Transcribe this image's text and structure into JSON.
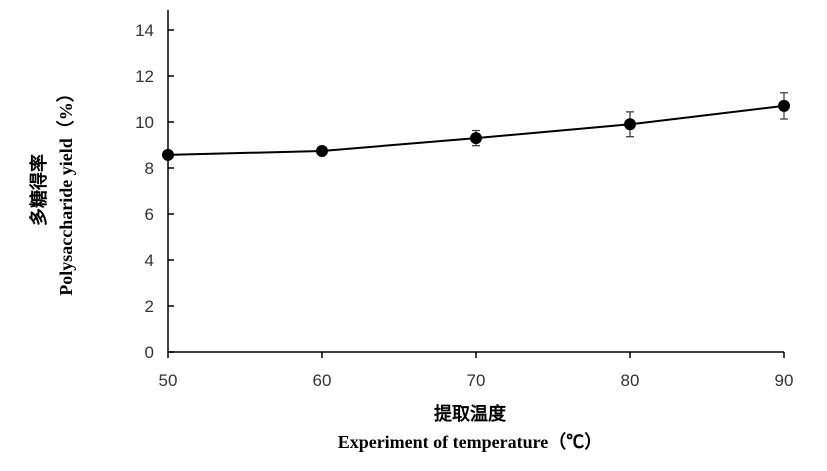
{
  "chart_data": {
    "type": "line",
    "x": [
      50,
      60,
      70,
      80,
      90
    ],
    "series": [
      {
        "name": "Polysaccharide yield",
        "values": [
          8.57,
          8.74,
          9.3,
          9.9,
          10.7
        ],
        "errors": [
          0.1,
          0.1,
          0.33,
          0.54,
          0.57
        ]
      }
    ],
    "xlabel_cn": "提取温度",
    "xlabel": "Experiment of temperature（℃）",
    "ylabel_cn": "多糖得率",
    "ylabel": "Polysaccharide yield（%）",
    "xlim": [
      50,
      90
    ],
    "ylim": [
      0,
      14
    ],
    "xticks": [
      "50",
      "60",
      "70",
      "80",
      "90"
    ],
    "yticks": [
      "0",
      "2",
      "4",
      "6",
      "8",
      "10",
      "12",
      "14"
    ],
    "grid": false
  }
}
